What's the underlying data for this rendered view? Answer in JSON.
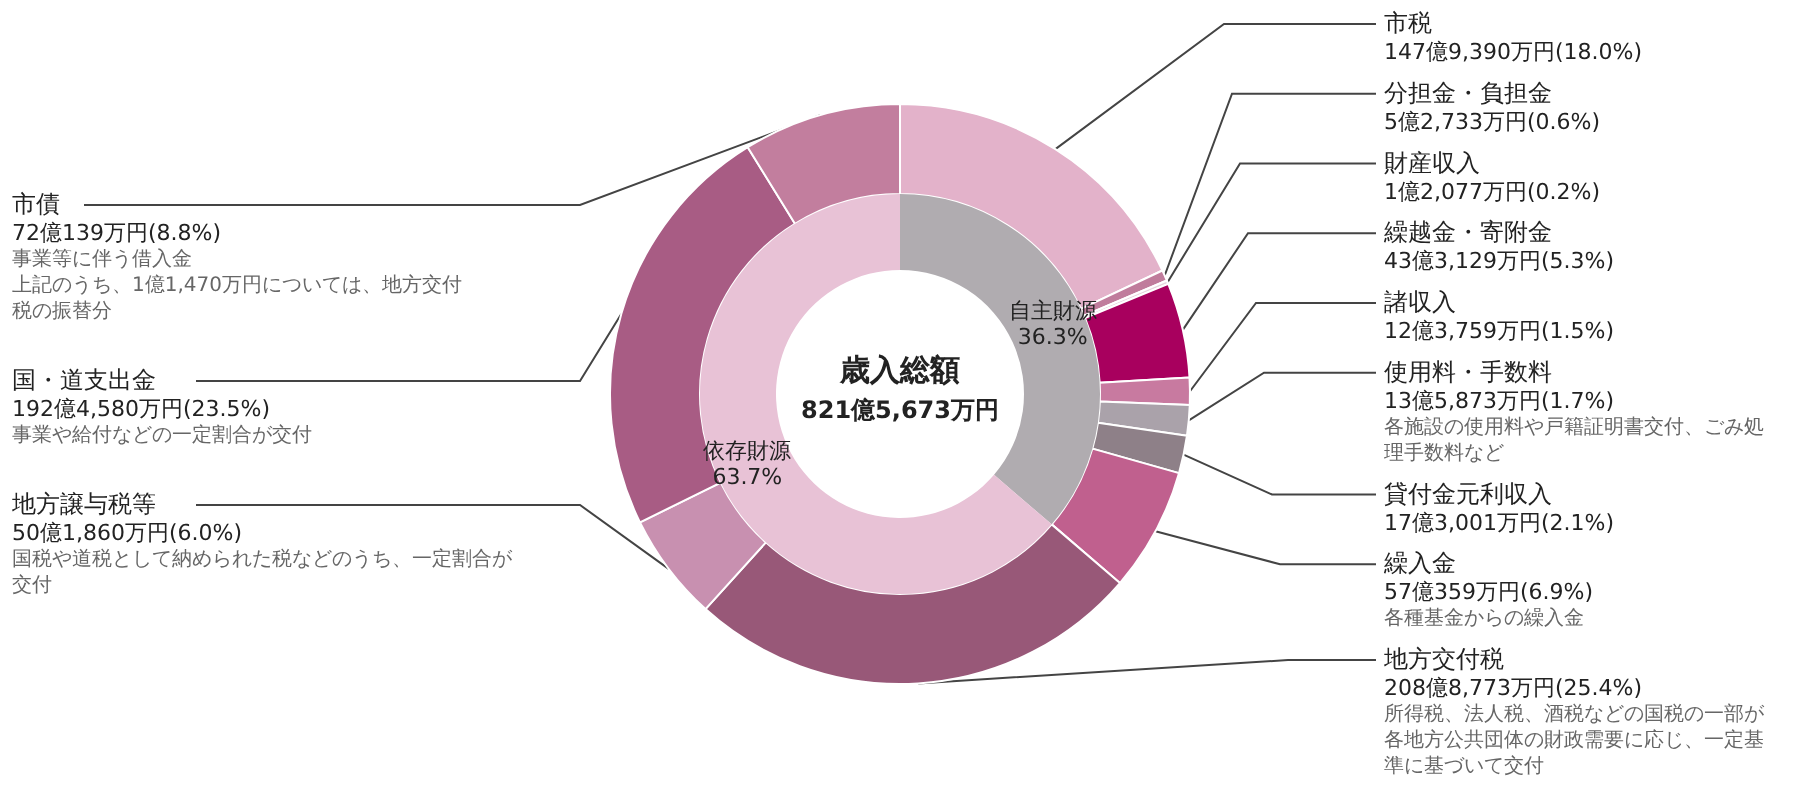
{
  "chart_data": [
    {
      "type": "donut",
      "categories": [
        "市税",
        "分担金・負担金",
        "財産収入",
        "繰越金・寄附金",
        "諸収入",
        "使用料・手数料",
        "貸付金元利収入",
        "繰入金",
        "地方交付税",
        "地方譲与税等",
        "国・道支出金",
        "市債"
      ],
      "values": [
        18.0,
        0.6,
        0.2,
        5.3,
        1.5,
        1.7,
        2.1,
        6.9,
        25.4,
        6.0,
        23.5,
        8.8
      ],
      "value_labels": [
        "147億9,390万円(18.0%)",
        "5億2,733万円(0.6%)",
        "1億2,077万円(0.2%)",
        "43億3,129万円(5.3%)",
        "12億3,759万円(1.5%)",
        "13億5,873万円(1.7%)",
        "17億3,001万円(2.1%)",
        "57億359万円(6.9%)",
        "208億8,773万円(25.4%)",
        "50億1,860万円(6.0%)",
        "192億4,580万円(23.5%)",
        "72億139万円(8.8%)"
      ],
      "colors": [
        "#e3b2ca",
        "#c07c9c",
        "#e6d6de",
        "#a8005e",
        "#c87aa0",
        "#aaa2aa",
        "#8e8088",
        "#c0608e",
        "#985878",
        "#c890b0",
        "#a85c84",
        "#c27e9e"
      ],
      "annotations": [
        {
          "text": "各施設の使用料や戸籍証明書交付、ごみ処理手数料など",
          "x": "使用料・手数料"
        },
        {
          "text": "各種基金からの繰入金",
          "x": "繰入金"
        },
        {
          "text": "所得税、法人税、酒税などの国税の一部が各地方公共団体の財政需要に応じ、一定基準に基づいて交付",
          "x": "地方交付税"
        },
        {
          "text": "国税や道税として納められた税などのうち、一定割合が交付",
          "x": "地方譲与税等"
        },
        {
          "text": "事業や給付などの一定割合が交付",
          "x": "国・道支出金"
        },
        {
          "text": "事業等に伴う借入金",
          "x": "市債"
        },
        {
          "text": "上記のうち、1億1,470万円については、地方交付税の振替分",
          "x": "市債"
        }
      ]
    },
    {
      "type": "donut",
      "title": "歳入総額",
      "subtitle": "821億5,673万円",
      "categories": [
        "自主財源",
        "依存財源"
      ],
      "values": [
        36.3,
        63.7
      ],
      "value_labels": [
        "36.3%",
        "63.7%"
      ],
      "colors": [
        "#b0acb0",
        "#e8c2d6"
      ]
    }
  ]
}
